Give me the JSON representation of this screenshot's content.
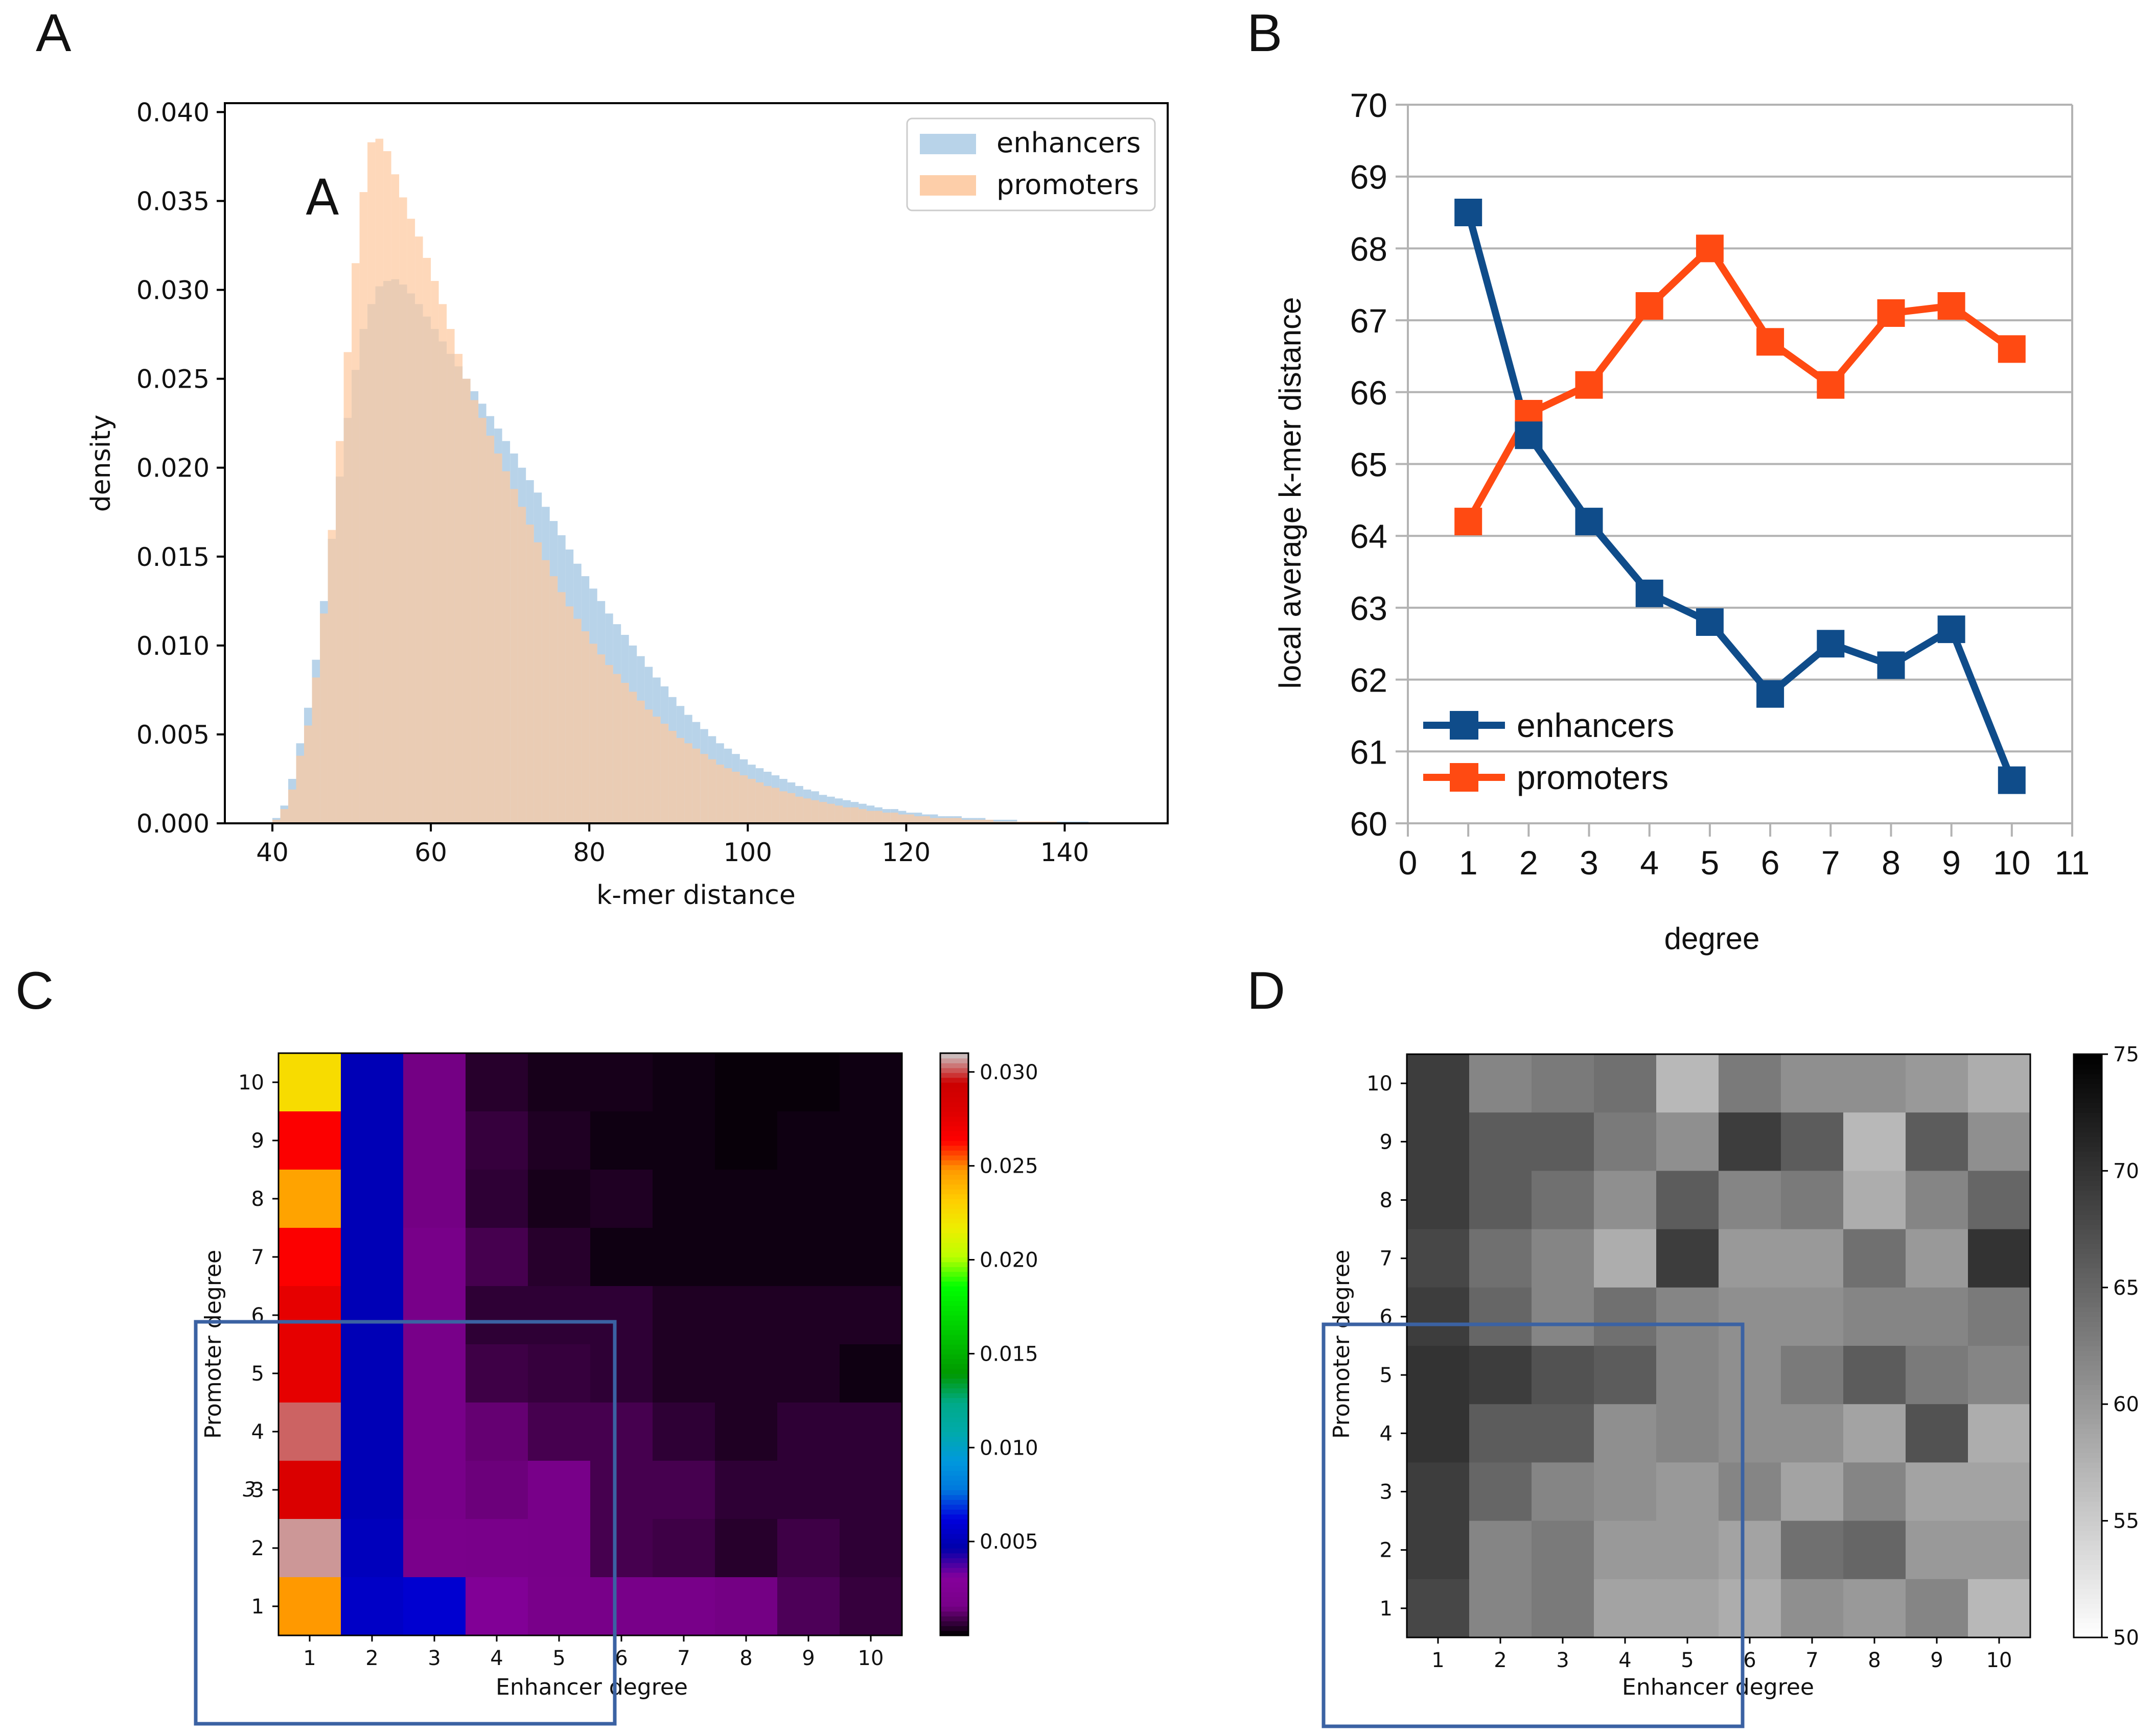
{
  "panel_labels": {
    "a": "A",
    "b": "B",
    "c": "C",
    "d": "D"
  },
  "colors": {
    "enhancers_hist": "#a6c8e3",
    "promoters_hist": "#fdc9a0",
    "enhancers_line": "#0f4c8a",
    "promoters_line": "#ff4a12",
    "roi_box": "#3b62a3"
  },
  "chart_data": [
    {
      "id": "A",
      "type": "bar",
      "title": "",
      "inset_label": "A",
      "xlabel": "k-mer distance",
      "ylabel": "density",
      "xlim": [
        34,
        153
      ],
      "ylim": [
        0,
        0.0405
      ],
      "xticks": [
        40,
        60,
        80,
        100,
        120,
        140
      ],
      "yticks": [
        0.0,
        0.005,
        0.01,
        0.015,
        0.02,
        0.025,
        0.03,
        0.035,
        0.04
      ],
      "ytick_labels": [
        "0.000",
        "0.005",
        "0.010",
        "0.015",
        "0.020",
        "0.025",
        "0.030",
        "0.035",
        "0.040"
      ],
      "bin_start": 40,
      "bin_width": 1,
      "legend": {
        "position": "top-right",
        "entries": [
          "enhancers",
          "promoters"
        ]
      },
      "series": [
        {
          "name": "enhancers",
          "values": [
            0.0003,
            0.001,
            0.0025,
            0.0045,
            0.0065,
            0.0092,
            0.0125,
            0.016,
            0.0195,
            0.0228,
            0.0255,
            0.0278,
            0.0292,
            0.0302,
            0.0305,
            0.0306,
            0.0303,
            0.0298,
            0.0292,
            0.0285,
            0.0278,
            0.0271,
            0.0264,
            0.0257,
            0.025,
            0.0243,
            0.0236,
            0.0229,
            0.0222,
            0.0215,
            0.0208,
            0.02,
            0.0193,
            0.0186,
            0.0178,
            0.017,
            0.0162,
            0.0154,
            0.0146,
            0.0139,
            0.0132,
            0.0125,
            0.0118,
            0.0112,
            0.0106,
            0.01,
            0.0094,
            0.0088,
            0.0082,
            0.0077,
            0.0071,
            0.0066,
            0.0061,
            0.0057,
            0.0053,
            0.0049,
            0.0045,
            0.0042,
            0.0039,
            0.0036,
            0.0033,
            0.0031,
            0.0029,
            0.0027,
            0.0025,
            0.0023,
            0.0021,
            0.0019,
            0.0018,
            0.0016,
            0.0015,
            0.0014,
            0.0013,
            0.0012,
            0.0011,
            0.001,
            0.0009,
            0.0008,
            0.0008,
            0.0007,
            0.0006,
            0.0006,
            0.0005,
            0.0005,
            0.0004,
            0.0004,
            0.0004,
            0.0003,
            0.0003,
            0.0003,
            0.0002,
            0.0002,
            0.0002,
            0.0002,
            0.0001,
            0.0001,
            0.0001,
            0.0001,
            0.0001,
            0.0001,
            0.0001,
            0.0001,
            0.0001,
            0.0,
            0.0,
            0.0,
            0.0,
            0.0,
            0.0,
            0.0,
            0.0
          ]
        },
        {
          "name": "promoters",
          "values": [
            0.0002,
            0.0008,
            0.0019,
            0.0038,
            0.0055,
            0.0082,
            0.0118,
            0.0165,
            0.0215,
            0.0265,
            0.0315,
            0.0355,
            0.0383,
            0.0385,
            0.0378,
            0.0365,
            0.0352,
            0.034,
            0.033,
            0.0318,
            0.0305,
            0.0292,
            0.0278,
            0.0264,
            0.025,
            0.0238,
            0.0228,
            0.0218,
            0.0208,
            0.0198,
            0.0188,
            0.0178,
            0.0168,
            0.0158,
            0.0148,
            0.0139,
            0.013,
            0.0122,
            0.0115,
            0.0108,
            0.0101,
            0.0095,
            0.0089,
            0.0084,
            0.0079,
            0.0074,
            0.0069,
            0.0064,
            0.006,
            0.0056,
            0.0052,
            0.0048,
            0.0045,
            0.0042,
            0.0039,
            0.0036,
            0.0033,
            0.0031,
            0.0029,
            0.0027,
            0.0025,
            0.0023,
            0.0021,
            0.002,
            0.0018,
            0.0017,
            0.0015,
            0.0014,
            0.0013,
            0.0012,
            0.0011,
            0.001,
            0.0009,
            0.0009,
            0.0008,
            0.0007,
            0.0007,
            0.0006,
            0.0006,
            0.0005,
            0.0005,
            0.0004,
            0.0004,
            0.0003,
            0.0003,
            0.0003,
            0.0003,
            0.0002,
            0.0002,
            0.0002,
            0.0002,
            0.0001,
            0.0001,
            0.0001,
            0.0001,
            0.0001,
            0.0001,
            0.0001,
            0.0001,
            0.0,
            0.0,
            0.0,
            0.0,
            0.0,
            0.0,
            0.0,
            0.0,
            0.0,
            0.0,
            0.0
          ]
        }
      ]
    },
    {
      "id": "B",
      "type": "line",
      "title": "",
      "xlabel": "degree",
      "ylabel": "local average k-mer distance",
      "xlim": [
        0,
        11
      ],
      "ylim": [
        60,
        70
      ],
      "xticks": [
        0,
        1,
        2,
        3,
        4,
        5,
        6,
        7,
        8,
        9,
        10,
        11
      ],
      "yticks": [
        60,
        61,
        62,
        63,
        64,
        65,
        66,
        67,
        68,
        69,
        70
      ],
      "grid": "horizontal",
      "legend": {
        "position": "bottom-left",
        "entries": [
          "enhancers",
          "promoters"
        ]
      },
      "x": [
        1,
        2,
        3,
        4,
        5,
        6,
        7,
        8,
        9,
        10
      ],
      "series": [
        {
          "name": "enhancers",
          "values": [
            68.5,
            65.4,
            64.2,
            63.2,
            62.8,
            61.8,
            62.5,
            62.2,
            62.7,
            60.6
          ]
        },
        {
          "name": "promoters",
          "values": [
            64.2,
            65.7,
            66.1,
            67.2,
            68.0,
            66.7,
            66.1,
            67.1,
            67.2,
            66.6
          ]
        }
      ]
    },
    {
      "id": "C",
      "type": "heatmap",
      "title": "",
      "xlabel": "Enhancer degree",
      "ylabel": "Promoter degree",
      "colormap": "nipy_spectral",
      "x_categories": [
        "1",
        "2",
        "3",
        "4",
        "5",
        "6",
        "7",
        "8",
        "9",
        "10"
      ],
      "y_categories": [
        "1",
        "2",
        "3",
        "4",
        "5",
        "6",
        "7",
        "8",
        "9",
        "10"
      ],
      "row_order": "top-to-bottom: promoter degree 10 down to 1",
      "stray_tick_glyph": "3",
      "zlim": [
        0,
        0.031
      ],
      "colorbar_ticks": [
        0.005,
        0.01,
        0.015,
        0.02,
        0.025,
        0.03
      ],
      "colorbar_tick_labels": [
        "0.005",
        "0.010",
        "0.015",
        "0.020",
        "0.025",
        "0.030"
      ],
      "values": [
        [
          0.0225,
          0.005,
          0.0015,
          0.0005,
          0.0003,
          0.0003,
          0.0002,
          0.0001,
          0.0001,
          0.0002
        ],
        [
          0.0265,
          0.005,
          0.0015,
          0.0007,
          0.0004,
          0.0002,
          0.0002,
          0.0001,
          0.0002,
          0.0002
        ],
        [
          0.0245,
          0.005,
          0.0015,
          0.0006,
          0.0003,
          0.0004,
          0.0002,
          0.0002,
          0.0002,
          0.0002
        ],
        [
          0.0265,
          0.005,
          0.0016,
          0.0009,
          0.0005,
          0.0002,
          0.0002,
          0.0002,
          0.0002,
          0.0002
        ],
        [
          0.0275,
          0.005,
          0.0016,
          0.0006,
          0.0006,
          0.0006,
          0.0004,
          0.0004,
          0.0004,
          0.0004
        ],
        [
          0.0275,
          0.005,
          0.0016,
          0.0008,
          0.0007,
          0.0006,
          0.0004,
          0.0004,
          0.0004,
          0.0002
        ],
        [
          0.0302,
          0.005,
          0.0016,
          0.0013,
          0.0009,
          0.0009,
          0.0006,
          0.0004,
          0.0006,
          0.0006
        ],
        [
          0.0282,
          0.005,
          0.0016,
          0.0014,
          0.0016,
          0.0009,
          0.0009,
          0.0006,
          0.0006,
          0.0006
        ],
        [
          0.0306,
          0.0052,
          0.0018,
          0.0017,
          0.0016,
          0.0009,
          0.0008,
          0.0005,
          0.0008,
          0.0006
        ],
        [
          0.0248,
          0.0055,
          0.0058,
          0.0026,
          0.0017,
          0.0016,
          0.0016,
          0.0015,
          0.001,
          0.0007
        ]
      ]
    },
    {
      "id": "D",
      "type": "heatmap",
      "title": "",
      "xlabel": "Enhancer degree",
      "ylabel": "Promoter degree",
      "colormap": "gray_r",
      "x_categories": [
        "1",
        "2",
        "3",
        "4",
        "5",
        "6",
        "7",
        "8",
        "9",
        "10"
      ],
      "y_categories": [
        "1",
        "2",
        "3",
        "4",
        "5",
        "6",
        "7",
        "8",
        "9",
        "10"
      ],
      "row_order": "top-to-bottom: promoter degree 10 down to 1",
      "zlim": [
        50,
        75
      ],
      "colorbar_ticks": [
        50,
        55,
        60,
        65,
        70,
        75
      ],
      "colorbar_tick_labels": [
        "50",
        "55",
        "60",
        "65",
        "70",
        "75"
      ],
      "values": [
        [
          69,
          62,
          63,
          64,
          57,
          63,
          61,
          61,
          60,
          58
        ],
        [
          69,
          66,
          66,
          63,
          61,
          69,
          66,
          57,
          66,
          61
        ],
        [
          69,
          66,
          64,
          61,
          66,
          62,
          63,
          58,
          62,
          65
        ],
        [
          68,
          64,
          62,
          58,
          69,
          60,
          60,
          64,
          60,
          70
        ],
        [
          69,
          65,
          62,
          64,
          62,
          61,
          61,
          62,
          62,
          63
        ],
        [
          70,
          69,
          67,
          66,
          62,
          61,
          63,
          66,
          63,
          62
        ],
        [
          70,
          66,
          66,
          61,
          62,
          61,
          61,
          59,
          67,
          58
        ],
        [
          69,
          65,
          62,
          61,
          60,
          62,
          59,
          62,
          59,
          59
        ],
        [
          69,
          62,
          63,
          60,
          60,
          59,
          64,
          65,
          60,
          60
        ],
        [
          68,
          62,
          63,
          59,
          59,
          58,
          61,
          60,
          62,
          57
        ]
      ]
    }
  ]
}
